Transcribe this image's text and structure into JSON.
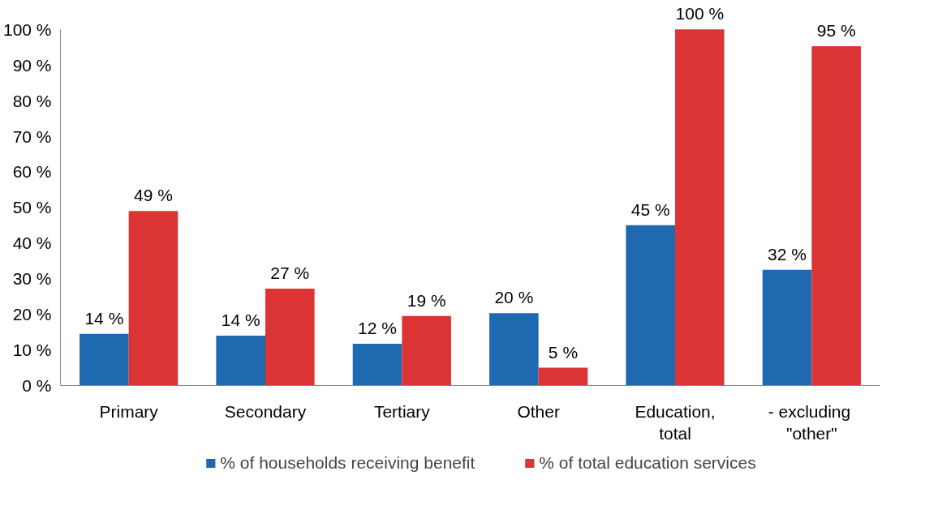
{
  "chart_data": {
    "type": "bar",
    "categories": [
      "Primary",
      "Secondary",
      "Tertiary",
      "Other",
      "Education,\ntotal",
      "-  excluding\n\"other\""
    ],
    "series": [
      {
        "name": "% of households receiving benefit",
        "color": "#1f69b1",
        "values": [
          14.5,
          14,
          11.7,
          20.3,
          45,
          32.5
        ],
        "value_labels": [
          "14 %",
          "14 %",
          "12 %",
          "20 %",
          "45 %",
          "32 %"
        ]
      },
      {
        "name": "% of total education services",
        "color": "#dc3434",
        "values": [
          49,
          27.2,
          19.5,
          5,
          100,
          95.3
        ],
        "value_labels": [
          "49 %",
          "27 %",
          "19 %",
          "5 %",
          "100 %",
          "95 %"
        ]
      }
    ],
    "ylim": [
      0,
      100
    ],
    "yticks": [
      {
        "value": 0,
        "label": "0 %"
      },
      {
        "value": 10,
        "label": "10 %"
      },
      {
        "value": 20,
        "label": "20 %"
      },
      {
        "value": 30,
        "label": "30 %"
      },
      {
        "value": 40,
        "label": "40 %"
      },
      {
        "value": 50,
        "label": "50 %"
      },
      {
        "value": 60,
        "label": "60 %"
      },
      {
        "value": 70,
        "label": "70 %"
      },
      {
        "value": 80,
        "label": "80 %"
      },
      {
        "value": 90,
        "label": "90 %"
      },
      {
        "value": 100,
        "label": "100 %"
      }
    ],
    "grid": false,
    "legend": "bottom"
  }
}
